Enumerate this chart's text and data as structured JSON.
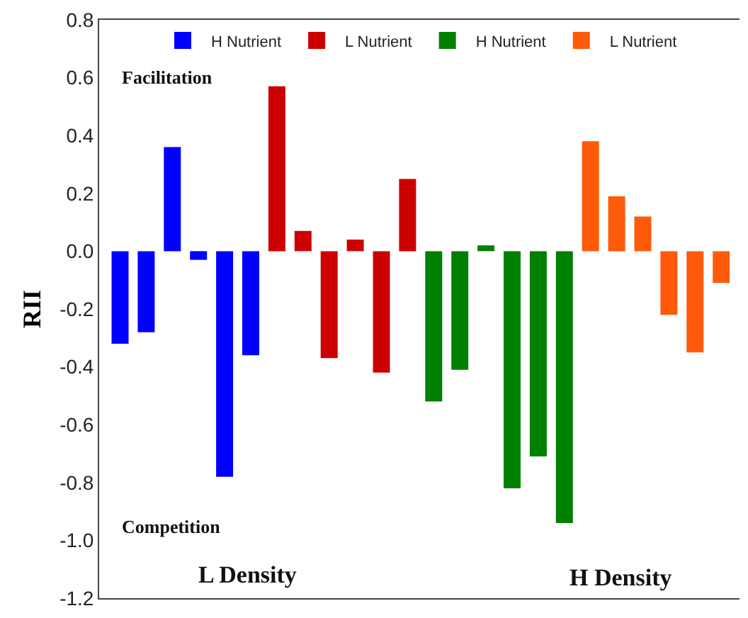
{
  "chart_data": {
    "type": "bar",
    "ylabel": "RII",
    "categories": [
      null,
      null,
      null,
      null,
      null,
      null,
      null,
      null,
      null,
      null,
      null,
      null,
      null,
      null,
      null,
      null,
      null,
      null,
      null,
      null,
      null,
      null,
      null,
      null
    ],
    "series": [
      {
        "name": "H Nutrient",
        "color": "#0000ff",
        "values": [
          -0.32,
          -0.28,
          0.36,
          -0.03,
          -0.78,
          -0.36,
          null,
          null,
          null,
          null,
          null,
          null,
          null,
          null,
          null,
          null,
          null,
          null,
          null,
          null,
          null,
          null,
          null,
          null
        ]
      },
      {
        "name": "L Nutrient",
        "color": "#cc0000",
        "values": [
          null,
          null,
          null,
          null,
          null,
          null,
          0.57,
          0.07,
          -0.37,
          0.04,
          -0.42,
          0.25,
          null,
          null,
          null,
          null,
          null,
          null,
          null,
          null,
          null,
          null,
          null,
          null
        ]
      },
      {
        "name": "H Nutrient",
        "color": "#008000",
        "values": [
          null,
          null,
          null,
          null,
          null,
          null,
          null,
          null,
          null,
          null,
          null,
          null,
          -0.52,
          -0.41,
          0.02,
          -0.82,
          -0.71,
          -0.94,
          null,
          null,
          null,
          null,
          null,
          null
        ]
      },
      {
        "name": "L Nutrient",
        "color": "#ff5a0a",
        "values": [
          null,
          null,
          null,
          null,
          null,
          null,
          null,
          null,
          null,
          null,
          null,
          null,
          null,
          null,
          null,
          null,
          null,
          null,
          0.38,
          0.19,
          0.12,
          -0.22,
          -0.35,
          -0.11
        ]
      }
    ],
    "ylim": [
      -1.2,
      0.8
    ],
    "yticks": [
      {
        "value": -1.2,
        "label": "-1.2"
      },
      {
        "value": -1.0,
        "label": "-1.0"
      },
      {
        "value": -0.8,
        "label": "-0.8"
      },
      {
        "value": -0.6,
        "label": "-0.6"
      },
      {
        "value": -0.4,
        "label": "-0.4"
      },
      {
        "value": -0.2,
        "label": "-0.2"
      },
      {
        "value": 0,
        "label": "0.0"
      },
      {
        "value": 0.2,
        "label": "0.2"
      },
      {
        "value": 0.4,
        "label": "0.4"
      },
      {
        "value": 0.6,
        "label": "0.6"
      },
      {
        "value": 0.8,
        "label": "0.8"
      }
    ],
    "annotations": [
      "Facilitation",
      "Competition",
      "L Density",
      "H Density"
    ],
    "legend": "top"
  }
}
